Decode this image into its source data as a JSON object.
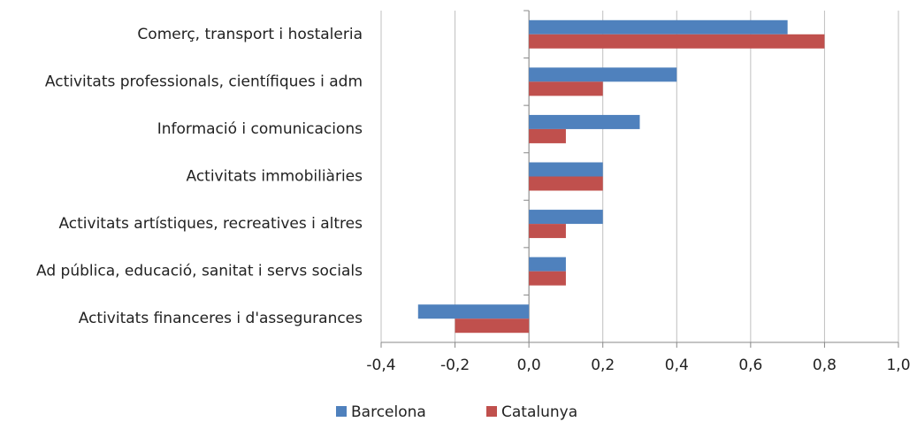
{
  "chart_data": {
    "type": "hbar",
    "categories": [
      "Comerç, transport i hostaleria",
      "Activitats professionals, científiques i adm",
      "Informació i comunicacions",
      "Activitats immobiliàries",
      "Activitats artístiques, recreatives i altres",
      "Ad pública, educació, sanitat i servs socials",
      "Activitats financeres i d'assegurances"
    ],
    "series": [
      {
        "name": "Barcelona",
        "color": "#4f81bd",
        "values": [
          0.7,
          0.4,
          0.3,
          0.2,
          0.2,
          0.1,
          -0.3
        ]
      },
      {
        "name": "Catalunya",
        "color": "#c0504d",
        "values": [
          0.8,
          0.2,
          0.1,
          0.2,
          0.1,
          0.1,
          -0.2
        ]
      }
    ],
    "xlim": [
      -0.4,
      1.0
    ],
    "xticks": [
      {
        "value": -0.4,
        "label": "-0,4"
      },
      {
        "value": -0.2,
        "label": "-0,2"
      },
      {
        "value": 0,
        "label": "0,0"
      },
      {
        "value": 0.2,
        "label": "0,2"
      },
      {
        "value": 0.4,
        "label": "0,4"
      },
      {
        "value": 0.6,
        "label": "0,6"
      },
      {
        "value": 0.8,
        "label": "0,8"
      },
      {
        "value": 1.0,
        "label": "1,0"
      }
    ],
    "grid": true,
    "legend": "bottom"
  }
}
